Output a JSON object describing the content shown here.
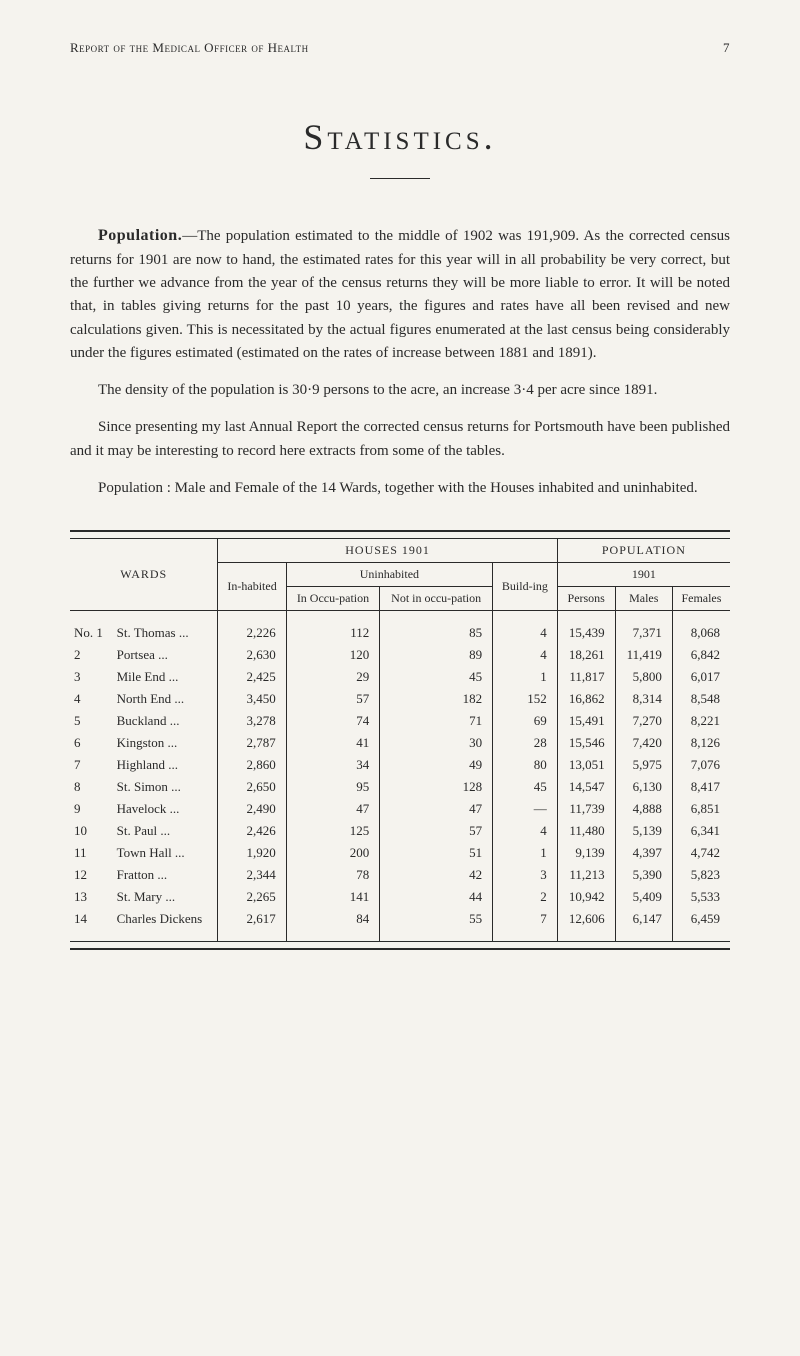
{
  "header": {
    "running_title": "Report of the Medical Officer of Health",
    "page_number": "7"
  },
  "title": "Statistics.",
  "paragraphs": {
    "p1_lede": "Population.",
    "p1_body": "—The population estimated to the middle of 1902 was 191,909. As the corrected census returns for 1901 are now to hand, the estimated rates for this year will in all probability be very correct, but the further we advance from the year of the census returns they will be more liable to error. It will be noted that, in tables giving returns for the past 10 years, the figures and rates have all been revised and new calculations given. This is necessitated by the actual figures enumerated at the last census being considerably under the figures estimated (estimated on the rates of increase between 1881 and 1891).",
    "p2": "The density of the population is 30·9 persons to the acre, an increase 3·4 per acre since 1891.",
    "p3": "Since presenting my last Annual Report the corrected census returns for Portsmouth have been published and it may be interesting to record here extracts from some of the tables.",
    "p4": "Population : Male and Female of the 14 Wards, together with the Houses inhabited and uninhabited."
  },
  "table": {
    "headers": {
      "wards": "WARDS",
      "houses_group": "HOUSES 1901",
      "population_group": "POPULATION",
      "inhabited": "In-habited",
      "uninhabited": "Uninhabited",
      "building": "Build-ing",
      "in_occu": "In Occu-pation",
      "notin_occu": "Not in occu-pation",
      "year": "1901",
      "persons": "Persons",
      "males": "Males",
      "females": "Females"
    },
    "rows": [
      {
        "no": "No. 1",
        "ward": "St. Thomas",
        "suf": "...",
        "inhab": "2,226",
        "inocc": "112",
        "notocc": "85",
        "build": "4",
        "pers": "15,439",
        "m": "7,371",
        "f": "8,068"
      },
      {
        "no": "2",
        "ward": "Portsea",
        "suf": "...",
        "inhab": "2,630",
        "inocc": "120",
        "notocc": "89",
        "build": "4",
        "pers": "18,261",
        "m": "11,419",
        "f": "6,842"
      },
      {
        "no": "3",
        "ward": "Mile End",
        "suf": "...",
        "inhab": "2,425",
        "inocc": "29",
        "notocc": "45",
        "build": "1",
        "pers": "11,817",
        "m": "5,800",
        "f": "6,017"
      },
      {
        "no": "4",
        "ward": "North End",
        "suf": "...",
        "inhab": "3,450",
        "inocc": "57",
        "notocc": "182",
        "build": "152",
        "pers": "16,862",
        "m": "8,314",
        "f": "8,548"
      },
      {
        "no": "5",
        "ward": "Buckland",
        "suf": "...",
        "inhab": "3,278",
        "inocc": "74",
        "notocc": "71",
        "build": "69",
        "pers": "15,491",
        "m": "7,270",
        "f": "8,221"
      },
      {
        "no": "6",
        "ward": "Kingston",
        "suf": "...",
        "inhab": "2,787",
        "inocc": "41",
        "notocc": "30",
        "build": "28",
        "pers": "15,546",
        "m": "7,420",
        "f": "8,126"
      },
      {
        "no": "7",
        "ward": "Highland",
        "suf": "...",
        "inhab": "2,860",
        "inocc": "34",
        "notocc": "49",
        "build": "80",
        "pers": "13,051",
        "m": "5,975",
        "f": "7,076"
      },
      {
        "no": "8",
        "ward": "St. Simon",
        "suf": "...",
        "inhab": "2,650",
        "inocc": "95",
        "notocc": "128",
        "build": "45",
        "pers": "14,547",
        "m": "6,130",
        "f": "8,417"
      },
      {
        "no": "9",
        "ward": "Havelock",
        "suf": "...",
        "inhab": "2,490",
        "inocc": "47",
        "notocc": "47",
        "build": "—",
        "pers": "11,739",
        "m": "4,888",
        "f": "6,851"
      },
      {
        "no": "10",
        "ward": "St. Paul",
        "suf": "...",
        "inhab": "2,426",
        "inocc": "125",
        "notocc": "57",
        "build": "4",
        "pers": "11,480",
        "m": "5,139",
        "f": "6,341"
      },
      {
        "no": "11",
        "ward": "Town Hall",
        "suf": "...",
        "inhab": "1,920",
        "inocc": "200",
        "notocc": "51",
        "build": "1",
        "pers": "9,139",
        "m": "4,397",
        "f": "4,742"
      },
      {
        "no": "12",
        "ward": "Fratton",
        "suf": "...",
        "inhab": "2,344",
        "inocc": "78",
        "notocc": "42",
        "build": "3",
        "pers": "11,213",
        "m": "5,390",
        "f": "5,823"
      },
      {
        "no": "13",
        "ward": "St. Mary",
        "suf": "...",
        "inhab": "2,265",
        "inocc": "141",
        "notocc": "44",
        "build": "2",
        "pers": "10,942",
        "m": "5,409",
        "f": "5,533"
      },
      {
        "no": "14",
        "ward": "Charles Dickens",
        "suf": "",
        "inhab": "2,617",
        "inocc": "84",
        "notocc": "55",
        "build": "7",
        "pers": "12,606",
        "m": "6,147",
        "f": "6,459"
      }
    ]
  },
  "style": {
    "background_color": "#f5f3ee",
    "text_color": "#2a2a2a",
    "body_fontsize": 15,
    "title_fontsize": 36,
    "table_fontsize": 13
  }
}
